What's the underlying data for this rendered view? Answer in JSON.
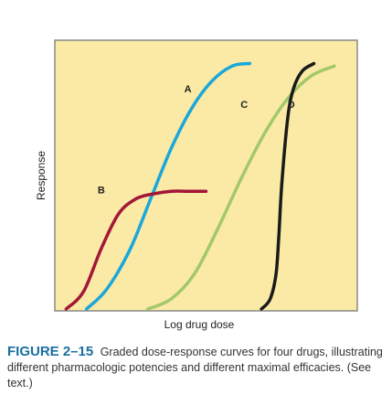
{
  "chart_data": {
    "type": "line",
    "xlabel": "Log drug dose",
    "ylabel": "Response",
    "xlim": [
      0,
      10
    ],
    "ylim": [
      0,
      100
    ],
    "grid": false,
    "legend": "none (curves labeled directly)",
    "plot_background": "#fbeaa6",
    "series": [
      {
        "name": "A",
        "color": "#1aa7d9",
        "x": [
          0.9,
          1.6,
          2.4,
          3.1,
          3.8,
          4.5,
          5.2,
          5.9,
          6.5
        ],
        "y": [
          0,
          8,
          24,
          44,
          64,
          80,
          91,
          97,
          98
        ]
      },
      {
        "name": "B",
        "color": "#a21737",
        "x": [
          0.2,
          0.8,
          1.4,
          2.0,
          2.6,
          3.2,
          3.8,
          4.4,
          5.0
        ],
        "y": [
          0,
          7,
          24,
          38,
          44,
          46,
          47,
          47,
          47
        ]
      },
      {
        "name": "C",
        "color": "#a2c86a",
        "x": [
          3.0,
          3.8,
          4.6,
          5.4,
          6.2,
          7.0,
          7.8,
          8.6,
          9.4
        ],
        "y": [
          0,
          4,
          14,
          32,
          52,
          70,
          84,
          93,
          97
        ]
      },
      {
        "name": "D",
        "color": "#1a1a1a",
        "x": [
          6.9,
          7.2,
          7.4,
          7.5,
          7.6,
          7.8,
          8.0,
          8.3,
          8.7
        ],
        "y": [
          0,
          4,
          14,
          30,
          50,
          76,
          88,
          95,
          98
        ]
      }
    ]
  },
  "caption": {
    "label": "FIGURE 2–15",
    "text": "Graded dose-response curves for four drugs, illustrating different pharmacologic potencies and different maximal efficacies. (See text.)"
  }
}
